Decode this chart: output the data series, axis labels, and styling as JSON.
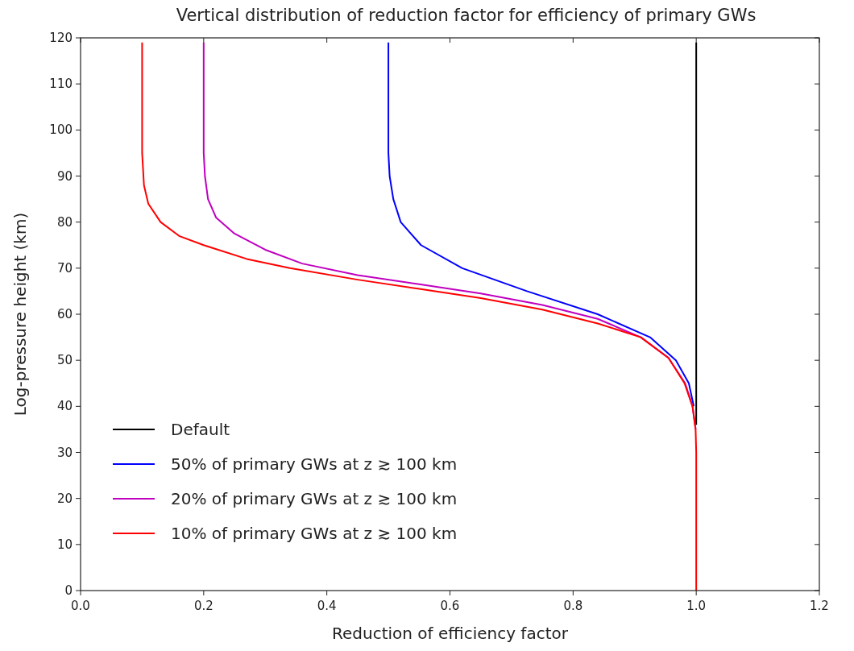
{
  "chart_data": {
    "type": "line",
    "title": "Vertical distribution of reduction factor for efficiency of primary GWs",
    "xlabel": "Reduction of efficiency factor",
    "ylabel": "Log-pressure height (km)",
    "xlim": [
      0,
      1.2
    ],
    "xticks": [
      {
        "value": 0,
        "label": "0.0"
      },
      {
        "value": 0.2,
        "label": "0.2"
      },
      {
        "value": 0.4,
        "label": "0.4"
      },
      {
        "value": 0.6,
        "label": "0.6"
      },
      {
        "value": 0.8,
        "label": "0.8"
      },
      {
        "value": 1,
        "label": "1.0"
      },
      {
        "value": 1.2,
        "label": "1.2"
      }
    ],
    "ylim": [
      0,
      120
    ],
    "yticks": [
      0,
      10,
      20,
      30,
      40,
      50,
      60,
      70,
      80,
      90,
      100,
      110,
      120
    ],
    "legend": "bottom left",
    "line_style": "solid",
    "marker": "none",
    "series": [
      {
        "name": "Default",
        "color": "#000000",
        "x": [
          1,
          1
        ],
        "values": [
          36,
          119
        ]
      },
      {
        "name": "50% of primary GWs at z ≳ 100 km",
        "color": "#0000ff",
        "x": [
          0.5,
          0.5,
          0.502,
          0.508,
          0.52,
          0.553,
          0.62,
          0.725,
          0.84,
          0.925,
          0.967,
          0.988,
          0.996
        ],
        "values": [
          119,
          95,
          90,
          85,
          80,
          75,
          70,
          65,
          60,
          55,
          50,
          45,
          40
        ]
      },
      {
        "name": "20% of primary GWs at z ≳ 100 km",
        "color": "#bf00bf",
        "x": [
          0.2,
          0.2,
          0.202,
          0.207,
          0.22,
          0.25,
          0.3,
          0.36,
          0.45,
          0.55,
          0.65,
          0.75,
          0.84,
          0.91,
          0.955,
          0.982,
          0.994,
          0.999
        ],
        "values": [
          119,
          95,
          90,
          85,
          81,
          77.5,
          74,
          71,
          68.5,
          66.5,
          64.5,
          62,
          59,
          55,
          50.5,
          45,
          40,
          35
        ]
      },
      {
        "name": "10% of primary GWs at z ≳ 100 km",
        "color": "#ff0000",
        "x": [
          0.1,
          0.1,
          0.103,
          0.11,
          0.13,
          0.16,
          0.2,
          0.27,
          0.34,
          0.45,
          0.55,
          0.65,
          0.75,
          0.84,
          0.91,
          0.955,
          0.981,
          0.994,
          0.999,
          1,
          1
        ],
        "values": [
          119,
          95,
          88,
          84,
          80,
          77,
          75,
          72,
          70,
          67.5,
          65.5,
          63.5,
          61,
          58,
          55,
          50.5,
          45,
          40,
          35,
          30,
          0
        ]
      }
    ]
  }
}
